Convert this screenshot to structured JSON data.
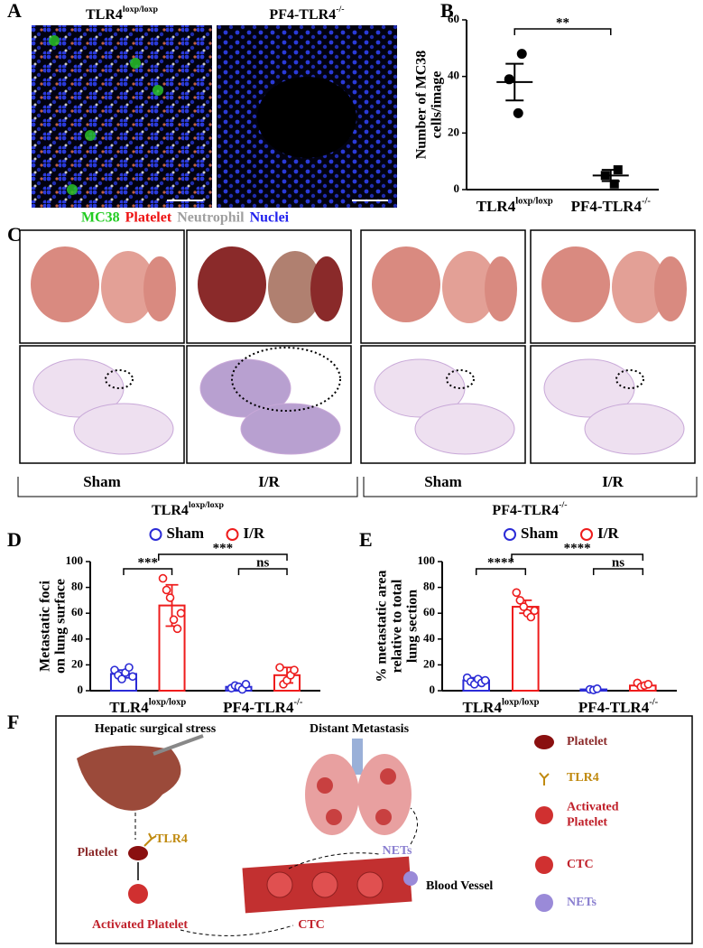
{
  "panel_labels": [
    "A",
    "B",
    "C",
    "D",
    "E",
    "F"
  ],
  "panel_a": {
    "images": [
      {
        "title": {
          "text": "TLR4",
          "sup": "loxp/loxp"
        }
      },
      {
        "title": {
          "text": "PF4-TLR4",
          "sup": "-/-"
        }
      }
    ],
    "stain_legend": [
      {
        "text": "MC38",
        "color": "#22cc22"
      },
      {
        "text": "Platelet",
        "color": "#ee1111"
      },
      {
        "text": "Neutrophil",
        "color": "#a0a0a0"
      },
      {
        "text": "Nuclei",
        "color": "#2222ee"
      }
    ]
  },
  "panel_c": {
    "conditions": [
      "Sham",
      "I/R",
      "Sham",
      "I/R"
    ],
    "groups": [
      {
        "text": "TLR4",
        "sup": "loxp/loxp"
      },
      {
        "text": "PF4-TLR4",
        "sup": "-/-"
      }
    ]
  },
  "chart_data": [
    {
      "type": "dot",
      "y_label": [
        "Number of MC38",
        "cells/image"
      ],
      "categories": [
        {
          "text": "TLR4",
          "sup": "loxp/loxp"
        },
        {
          "text": "PF4-TLR4",
          "sup": "-/-"
        }
      ],
      "points": [
        [
          48,
          39,
          27
        ],
        [
          7,
          5,
          2
        ]
      ],
      "means": [
        38,
        5
      ],
      "errors": [
        6.5,
        2
      ],
      "markers": [
        "circle",
        "square"
      ],
      "color": "#000000",
      "ylim": [
        0,
        60
      ],
      "yticks": [
        0,
        20,
        40,
        60
      ],
      "significance": [
        "**"
      ]
    },
    {
      "type": "bar",
      "y_label": [
        "Metastatic foci",
        "on lung surface"
      ],
      "categories": [
        {
          "text": "TLR4",
          "sup": "loxp/loxp"
        },
        {
          "text": "PF4-TLR4",
          "sup": "-/-"
        }
      ],
      "series": [
        {
          "name": "Sham",
          "color": "#2b2bd6",
          "values": [
            13,
            3
          ],
          "errors": [
            3,
            1.5
          ],
          "points": [
            [
              16,
              12,
              9,
              14,
              18,
              11
            ],
            [
              2,
              4,
              3,
              1,
              5
            ]
          ]
        },
        {
          "name": "I/R",
          "color": "#ee1c1c",
          "values": [
            66,
            12
          ],
          "errors": [
            16,
            6
          ],
          "points": [
            [
              87,
              78,
              72,
              55,
              48,
              60
            ],
            [
              18,
              5,
              8,
              12,
              16
            ]
          ]
        }
      ],
      "ylim": [
        0,
        100
      ],
      "yticks": [
        0,
        20,
        40,
        60,
        80,
        100
      ],
      "significance": [
        "***",
        "***",
        "ns"
      ]
    },
    {
      "type": "bar",
      "y_label": [
        "% metastatic area",
        "relative to total",
        "lung section"
      ],
      "categories": [
        {
          "text": "TLR4",
          "sup": "loxp/loxp"
        },
        {
          "text": "PF4-TLR4",
          "sup": "-/-"
        }
      ],
      "series": [
        {
          "name": "Sham",
          "color": "#2b2bd6",
          "values": [
            8,
            1
          ],
          "errors": [
            2,
            0.5
          ],
          "points": [
            [
              10,
              7,
              5,
              9,
              6,
              8
            ],
            [
              1,
              0.5,
              1.5
            ]
          ]
        },
        {
          "name": "I/R",
          "color": "#ee1c1c",
          "values": [
            65,
            4
          ],
          "errors": [
            5,
            1.5
          ],
          "points": [
            [
              76,
              70,
              65,
              60,
              57,
              62
            ],
            [
              6,
              3,
              4,
              5
            ]
          ]
        }
      ],
      "ylim": [
        0,
        100
      ],
      "yticks": [
        0,
        20,
        40,
        60,
        80,
        100
      ],
      "significance": [
        "****",
        "****",
        "ns"
      ]
    }
  ],
  "panel_f": {
    "left_title": "Hepatic surgical stress",
    "right_title": "Distant Metastasis",
    "tlr4": "TLR4",
    "platelet": "Platelet",
    "activated": "Activated Platelet",
    "nets": "NETs",
    "vessel": "Blood Vessel",
    "ctc": "CTC",
    "legend": [
      [
        "Platelet"
      ],
      [
        "TLR4"
      ],
      [
        "Activated",
        "Platelet"
      ],
      [
        "CTC"
      ],
      [
        "NETs"
      ]
    ]
  }
}
